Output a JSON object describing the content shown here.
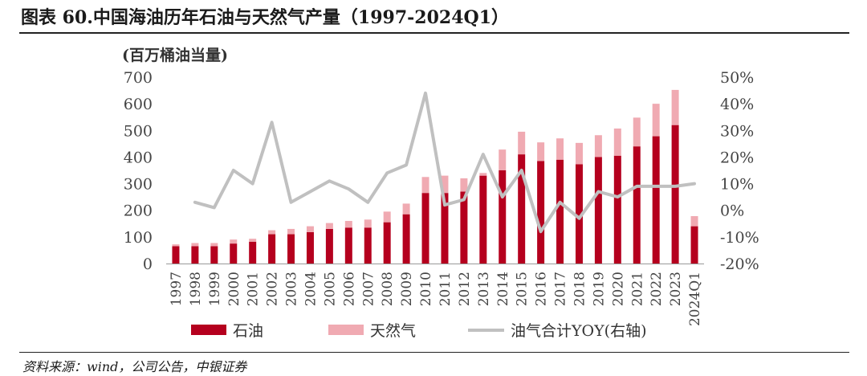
{
  "title": "图表 60.中国海油历年石油与天然气产量（1997-2024Q1）",
  "source": "资料来源：wind，公司公告，中银证券",
  "chart_data": {
    "type": "bar",
    "stacked": true,
    "unit_label": "(百万桶油当量)",
    "categories": [
      "1997",
      "1998",
      "1999",
      "2000",
      "2001",
      "2002",
      "2003",
      "2004",
      "2005",
      "2006",
      "2007",
      "2008",
      "2009",
      "2010",
      "2011",
      "2012",
      "2013",
      "2014",
      "2015",
      "2016",
      "2017",
      "2018",
      "2019",
      "2020",
      "2021",
      "2022",
      "2023",
      "2024Q1"
    ],
    "series": [
      {
        "name": "石油",
        "axis": "left",
        "color": "#b5001e",
        "values": [
          65,
          65,
          65,
          75,
          82,
          110,
          110,
          118,
          130,
          135,
          135,
          155,
          185,
          265,
          265,
          270,
          330,
          350,
          410,
          385,
          390,
          373,
          400,
          405,
          440,
          478,
          520,
          140
        ]
      },
      {
        "name": "天然气",
        "axis": "left",
        "color": "#f0aab2",
        "values": [
          7,
          12,
          12,
          15,
          11,
          15,
          20,
          22,
          22,
          25,
          30,
          40,
          40,
          60,
          65,
          50,
          10,
          78,
          85,
          70,
          80,
          80,
          82,
          102,
          108,
          122,
          132,
          38
        ]
      },
      {
        "name": "油气合计YOY(右轴)",
        "axis": "right",
        "type": "line",
        "color": "#c0c0c0",
        "values": [
          null,
          3,
          1,
          15,
          10,
          33,
          3,
          7,
          11,
          8,
          3,
          14,
          17,
          44,
          2,
          4,
          21,
          5,
          15,
          -8,
          3,
          -3,
          7,
          5,
          9,
          9,
          9,
          10
        ]
      }
    ],
    "y_left": {
      "min": 0,
      "max": 700,
      "ticks": [
        "0",
        "100",
        "200",
        "300",
        "400",
        "500",
        "600",
        "700"
      ]
    },
    "y_right": {
      "min": -20,
      "max": 50,
      "ticks": [
        "-20%",
        "-10%",
        "0%",
        "10%",
        "20%",
        "30%",
        "40%",
        "50%"
      ]
    },
    "legend_position": "bottom",
    "grid": false
  }
}
